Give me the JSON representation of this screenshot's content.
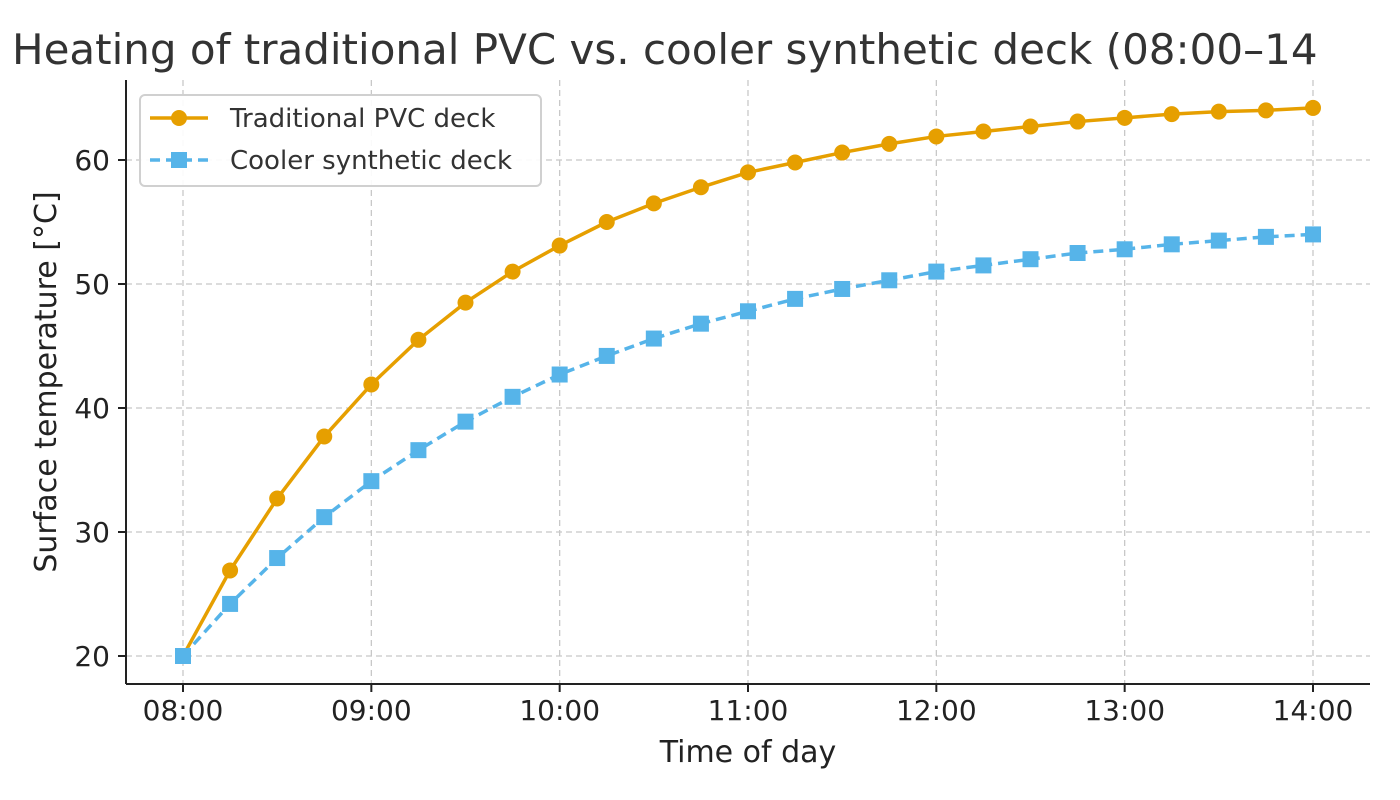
{
  "chart_data": {
    "type": "line",
    "title": "Heating of traditional PVC vs. cooler synthetic deck (08:00–14",
    "xlabel": "Time of day",
    "ylabel": "Surface temperature [°C]",
    "x": [
      "08:00",
      "08:15",
      "08:30",
      "08:45",
      "09:00",
      "09:15",
      "09:30",
      "09:45",
      "10:00",
      "10:15",
      "10:30",
      "10:45",
      "11:00",
      "11:15",
      "11:30",
      "11:45",
      "12:00",
      "12:15",
      "12:30",
      "12:45",
      "13:00",
      "13:15",
      "13:30",
      "13:45",
      "14:00"
    ],
    "x_ticks": [
      "08:00",
      "09:00",
      "10:00",
      "11:00",
      "12:00",
      "13:00",
      "14:00"
    ],
    "y_ticks": [
      20,
      30,
      40,
      50,
      60
    ],
    "ylim": [
      18,
      66.5
    ],
    "grid": true,
    "legend_position": "top-left",
    "series": [
      {
        "name": "Traditional PVC deck",
        "color": "#E69F00",
        "line": "solid",
        "marker": "circle",
        "values": [
          20,
          26.9,
          32.7,
          37.7,
          41.9,
          45.5,
          48.5,
          51.0,
          53.1,
          55.0,
          56.5,
          57.8,
          59.0,
          59.8,
          60.6,
          61.3,
          61.9,
          62.3,
          62.7,
          63.1,
          63.4,
          63.7,
          63.9,
          64.0,
          64.2
        ]
      },
      {
        "name": "Cooler synthetic deck",
        "color": "#56B4E9",
        "line": "dashed",
        "marker": "square",
        "values": [
          20,
          24.2,
          27.9,
          31.2,
          34.1,
          36.6,
          38.9,
          40.9,
          42.7,
          44.2,
          45.6,
          46.8,
          47.8,
          48.8,
          49.6,
          50.3,
          51.0,
          51.5,
          52.0,
          52.5,
          52.8,
          53.2,
          53.5,
          53.8,
          54.0
        ]
      }
    ]
  }
}
